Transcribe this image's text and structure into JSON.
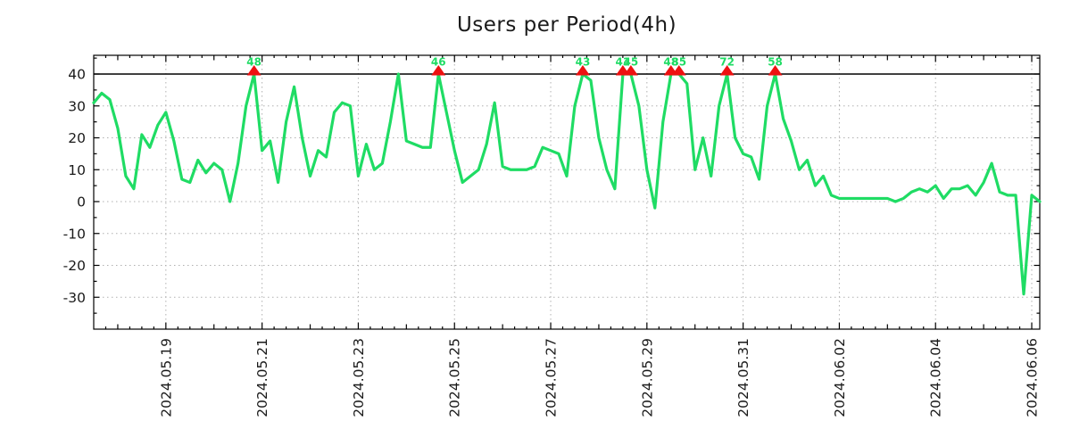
{
  "title": "Users per Period(4h)",
  "colors": {
    "line": "#1fdc64",
    "marker": "#ee1111",
    "peak_label": "#1fdc64",
    "grid": "#b0b0b0",
    "frame": "#000000",
    "threshold": "#000000",
    "text": "#1a1a1a",
    "background": "#ffffff"
  },
  "chart_data": {
    "type": "line",
    "title": "Users per Period(4h)",
    "series_name": "users",
    "start_time": "2024.05.17 12:00",
    "interval_hours": 4,
    "clip_max": 40,
    "threshold_line": 40,
    "grid": "dotted",
    "legend": "none",
    "y_tick_values": [
      40,
      30,
      20,
      10,
      0,
      -10,
      -20,
      -30
    ],
    "y_display_range": [
      -40,
      46
    ],
    "x_tick_labels": [
      "2024.05.19",
      "2024.05.21",
      "2024.05.23",
      "2024.05.25",
      "2024.05.27",
      "2024.05.29",
      "2024.05.31",
      "2024.06.02",
      "2024.06.04",
      "2024.06.06"
    ],
    "values": [
      31,
      34,
      32,
      23,
      8,
      4,
      21,
      17,
      24,
      28,
      19,
      7,
      6,
      13,
      9,
      12,
      10,
      0,
      12,
      30,
      48,
      16,
      19,
      6,
      25,
      36,
      20,
      8,
      16,
      14,
      28,
      31,
      30,
      8,
      18,
      10,
      12,
      25,
      40,
      19,
      18,
      17,
      17,
      46,
      28,
      16,
      6,
      8,
      10,
      18,
      31,
      11,
      10,
      10,
      10,
      11,
      17,
      16,
      15,
      8,
      30,
      43,
      38,
      20,
      10,
      4,
      43,
      45,
      30,
      10,
      -2,
      25,
      48,
      85,
      37,
      10,
      20,
      8,
      30,
      72,
      20,
      15,
      14,
      7,
      30,
      58,
      26,
      19,
      10,
      13,
      5,
      8,
      2,
      1,
      1,
      1,
      1,
      1,
      1,
      1,
      0,
      1,
      3,
      4,
      3,
      5,
      1,
      4,
      4,
      5,
      2,
      6,
      12,
      3,
      2,
      2,
      -29,
      2,
      0
    ],
    "peaks": [
      {
        "index": 20,
        "value": 48
      },
      {
        "index": 43,
        "value": 46
      },
      {
        "index": 61,
        "value": 43
      },
      {
        "index": 66,
        "value": 43
      },
      {
        "index": 67,
        "value": 45
      },
      {
        "index": 72,
        "value": 48
      },
      {
        "index": 73,
        "value": 85
      },
      {
        "index": 79,
        "value": 72
      },
      {
        "index": 85,
        "value": 58
      }
    ],
    "peak_marker_note": "values above 40 are clipped at the solid 40 line, marked with a red triangle and labeled with the true value"
  }
}
